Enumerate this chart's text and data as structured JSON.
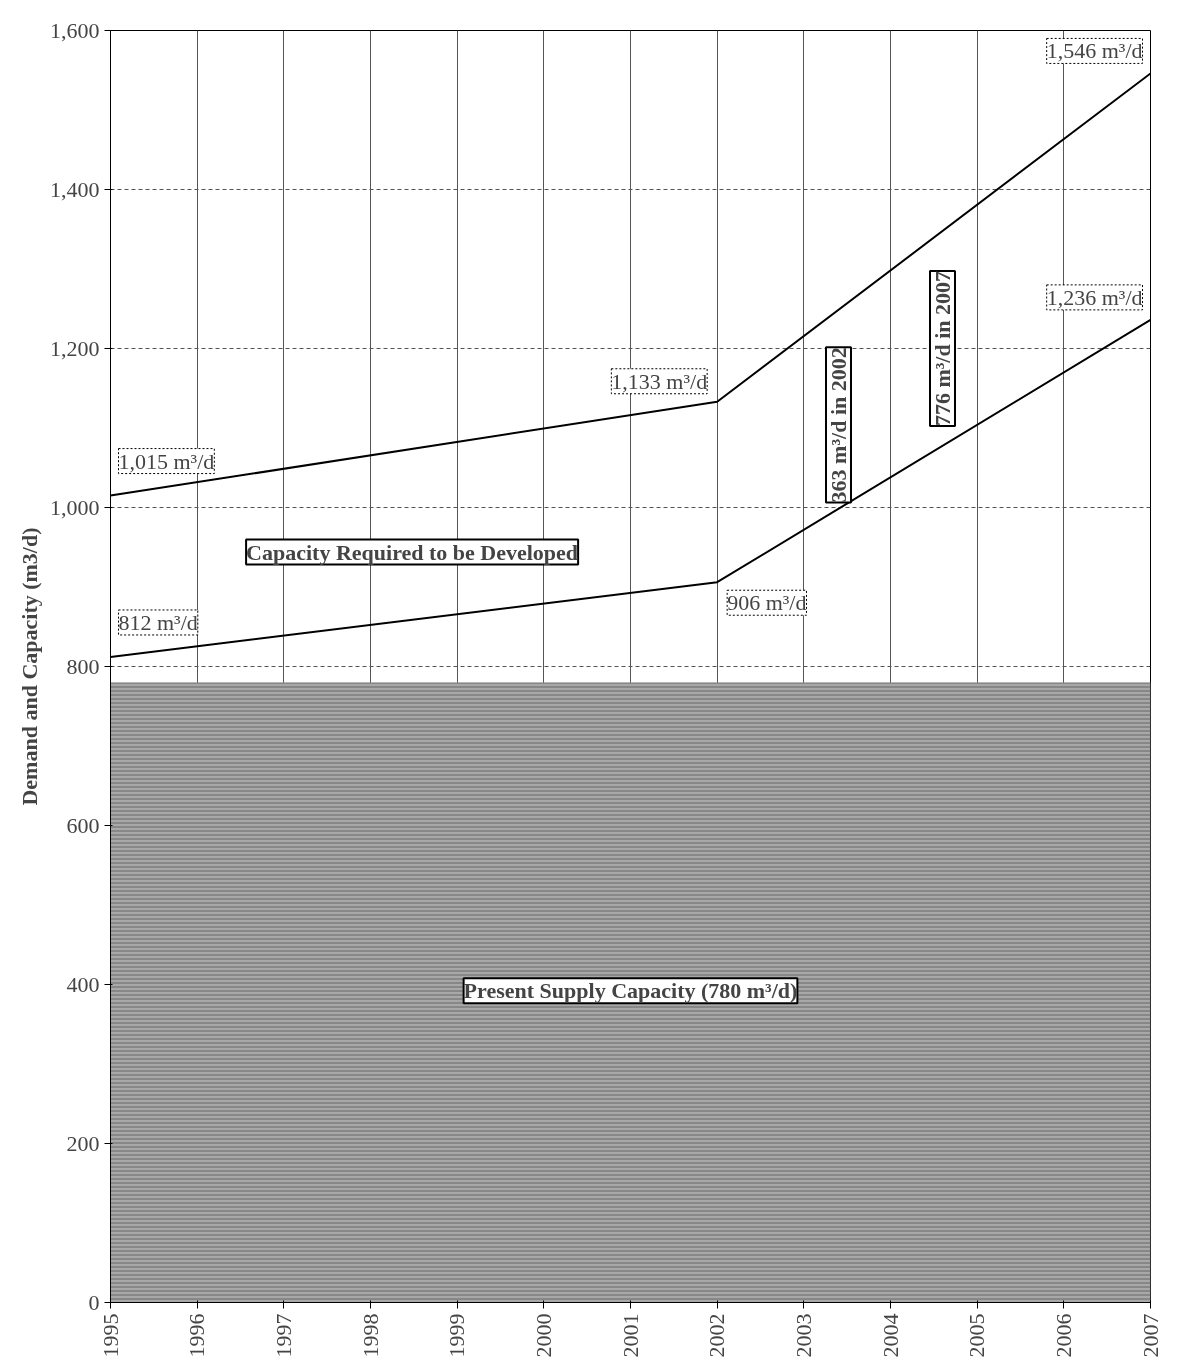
{
  "chart_data": {
    "type": "line",
    "ylabel": "Demand and Capacity (m3/d)",
    "xlim": [
      1995,
      2007
    ],
    "xticks": [
      1995,
      1996,
      1997,
      1998,
      1999,
      2000,
      2001,
      2002,
      2003,
      2004,
      2005,
      2006,
      2007
    ],
    "ylim": [
      0,
      1600
    ],
    "yticks": [
      0,
      {
        "value": 200,
        "label": "200"
      },
      {
        "value": 400,
        "label": "400"
      },
      {
        "value": 600,
        "label": "600"
      },
      {
        "value": 800,
        "label": "800"
      },
      {
        "value": 1000,
        "label": "1,000"
      },
      {
        "value": 1200,
        "label": "1,200"
      },
      {
        "value": 1400,
        "label": "1,400"
      },
      {
        "value": 1600,
        "label": "1,600"
      }
    ],
    "grid": true,
    "marker": "none",
    "line_style": "solid",
    "series": [
      {
        "type": "area",
        "color": "#a8a8a8",
        "x": [
          1995,
          2007
        ],
        "values": [
          780,
          780
        ]
      },
      {
        "color": "#000000",
        "x": [
          1995,
          2002,
          2007
        ],
        "values": [
          812,
          906,
          1236
        ],
        "value_labels": [
          "812 m³/d",
          "906 m³/d",
          "1,236 m³/d"
        ]
      },
      {
        "color": "#000000",
        "x": [
          1995,
          2002,
          2007
        ],
        "values": [
          1015,
          1133,
          1546
        ],
        "value_labels": [
          "1,015 m³/d",
          "1,133 m³/d",
          "1,546 m³/d"
        ]
      }
    ],
    "annotations": [
      "Capacity Required to be Developed",
      "363 m³/d in 2002",
      "776 m³/d in 2007",
      "Present Supply Capacity (780 m³/d)"
    ]
  }
}
